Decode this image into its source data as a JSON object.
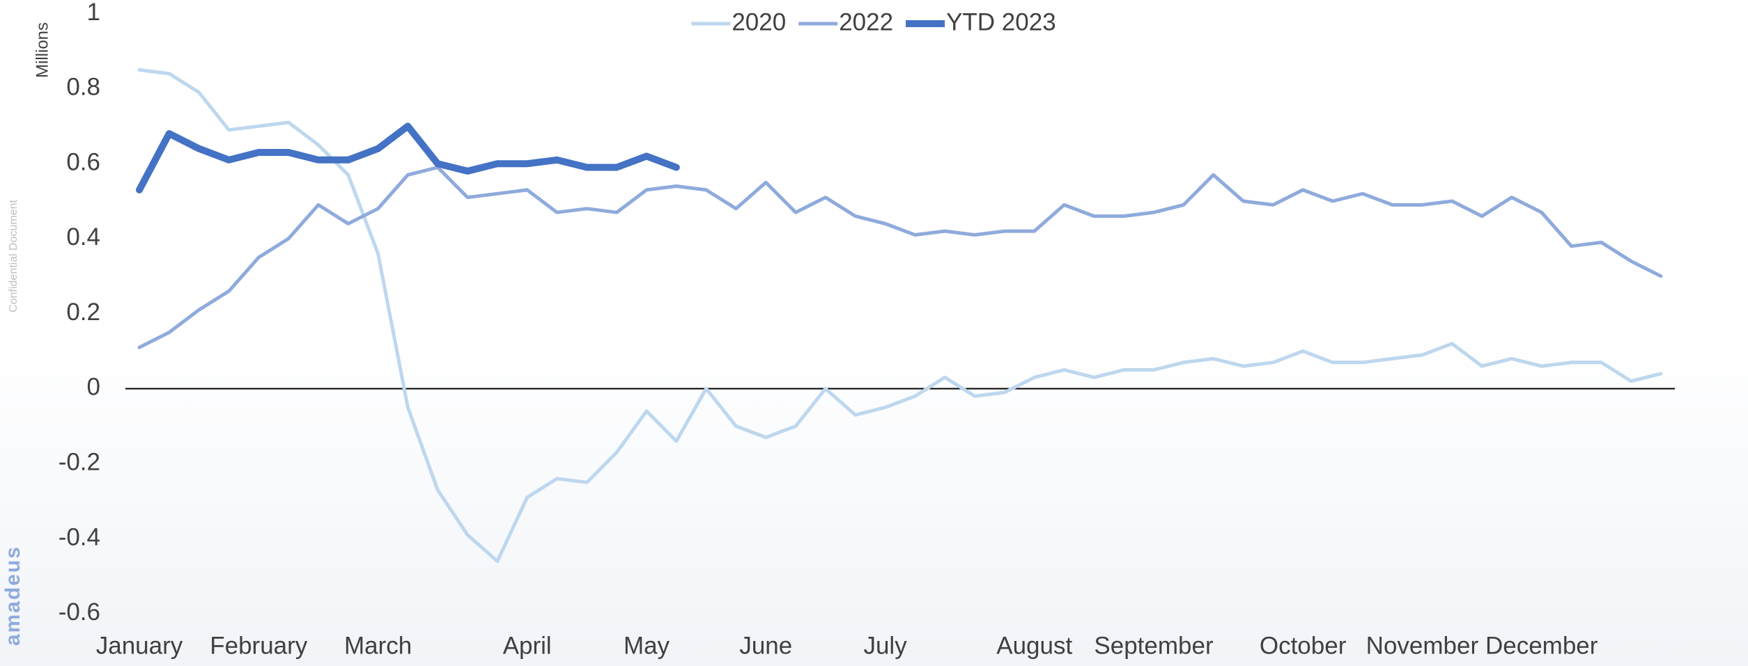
{
  "chart_data": {
    "type": "line",
    "ylabel": "Millions",
    "annotations": [
      "Confidential Document",
      "amadeus"
    ],
    "categories": [
      "January",
      null,
      null,
      null,
      "February",
      null,
      null,
      null,
      "March",
      null,
      null,
      null,
      null,
      "April",
      null,
      null,
      null,
      "May",
      null,
      null,
      null,
      "June",
      null,
      null,
      null,
      "July",
      null,
      null,
      null,
      null,
      "August",
      null,
      null,
      null,
      "September",
      null,
      null,
      null,
      null,
      "October",
      null,
      null,
      null,
      "November",
      null,
      null,
      null,
      "December",
      null,
      null,
      null,
      null
    ],
    "series": [
      {
        "name": "2020",
        "color": "#bdd7ee",
        "values": [
          0.85,
          0.84,
          0.79,
          0.69,
          0.7,
          0.71,
          0.65,
          0.57,
          0.36,
          -0.05,
          -0.27,
          -0.39,
          -0.46,
          -0.29,
          -0.24,
          -0.25,
          -0.17,
          -0.06,
          -0.14,
          0.0,
          -0.1,
          -0.13,
          -0.1,
          0.0,
          -0.07,
          -0.05,
          -0.02,
          0.03,
          -0.02,
          -0.01,
          0.03,
          0.05,
          0.03,
          0.05,
          0.05,
          0.07,
          0.08,
          0.06,
          0.07,
          0.1,
          0.07,
          0.07,
          0.08,
          0.09,
          0.12,
          0.06,
          0.08,
          0.06,
          0.07,
          0.07,
          0.02,
          0.04
        ]
      },
      {
        "name": "2022",
        "color": "#8faadc",
        "values": [
          0.11,
          0.15,
          0.21,
          0.26,
          0.35,
          0.4,
          0.49,
          0.44,
          0.48,
          0.57,
          0.59,
          0.51,
          0.52,
          0.53,
          0.47,
          0.48,
          0.47,
          0.53,
          0.54,
          0.53,
          0.48,
          0.55,
          0.47,
          0.51,
          0.46,
          0.44,
          0.41,
          0.42,
          0.41,
          0.42,
          0.42,
          0.49,
          0.46,
          0.46,
          0.47,
          0.49,
          0.57,
          0.5,
          0.49,
          0.53,
          0.5,
          0.52,
          0.49,
          0.49,
          0.5,
          0.46,
          0.51,
          0.47,
          0.38,
          0.39,
          0.34,
          0.3
        ]
      },
      {
        "name": "YTD 2023",
        "color": "#4472c4",
        "values": [
          0.53,
          0.68,
          0.64,
          0.61,
          0.63,
          0.63,
          0.61,
          0.61,
          0.64,
          0.7,
          0.6,
          0.58,
          0.6,
          0.6,
          0.61,
          0.59,
          0.59,
          0.62,
          0.59,
          null,
          null,
          null,
          null,
          null,
          null,
          null,
          null,
          null,
          null,
          null,
          null,
          null,
          null,
          null,
          null,
          null,
          null,
          null,
          null,
          null,
          null,
          null,
          null,
          null,
          null,
          null,
          null,
          null,
          null,
          null,
          null,
          null
        ]
      }
    ],
    "line_widths": [
      5,
      5,
      10
    ],
    "ylim": [
      -0.6,
      1
    ],
    "yticks": [
      -0.6,
      -0.4,
      -0.2,
      0,
      0.2,
      0.4,
      0.6,
      0.8,
      1
    ],
    "zero_line": true,
    "grid": false,
    "legend": "top"
  }
}
